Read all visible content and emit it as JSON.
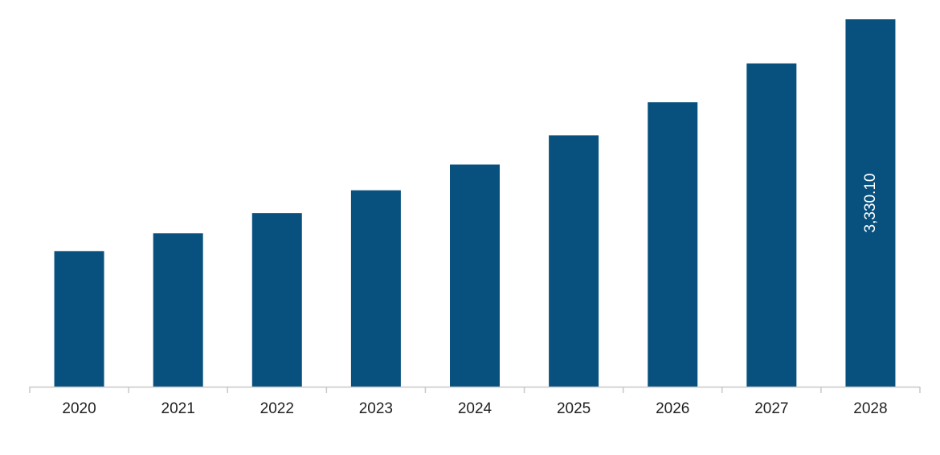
{
  "chart_data": {
    "type": "bar",
    "title": "",
    "xlabel": "",
    "ylabel": "",
    "categories": [
      "2020",
      "2021",
      "2022",
      "2023",
      "2024",
      "2025",
      "2026",
      "2027",
      "2028"
    ],
    "values": [
      1229,
      1390,
      1573,
      1780,
      2014,
      2278,
      2578,
      2930,
      3330.1
    ],
    "data_labels": [
      "",
      "",
      "",
      "",
      "",
      "",
      "",
      "",
      "3,330.10"
    ],
    "ylim": [
      0,
      3330.1
    ],
    "grid": false,
    "legend": "none",
    "colors": {
      "bar": "#08517f",
      "axis": "#c8c8c8",
      "tick_label": "#222222",
      "data_label": "#ffffff"
    }
  }
}
